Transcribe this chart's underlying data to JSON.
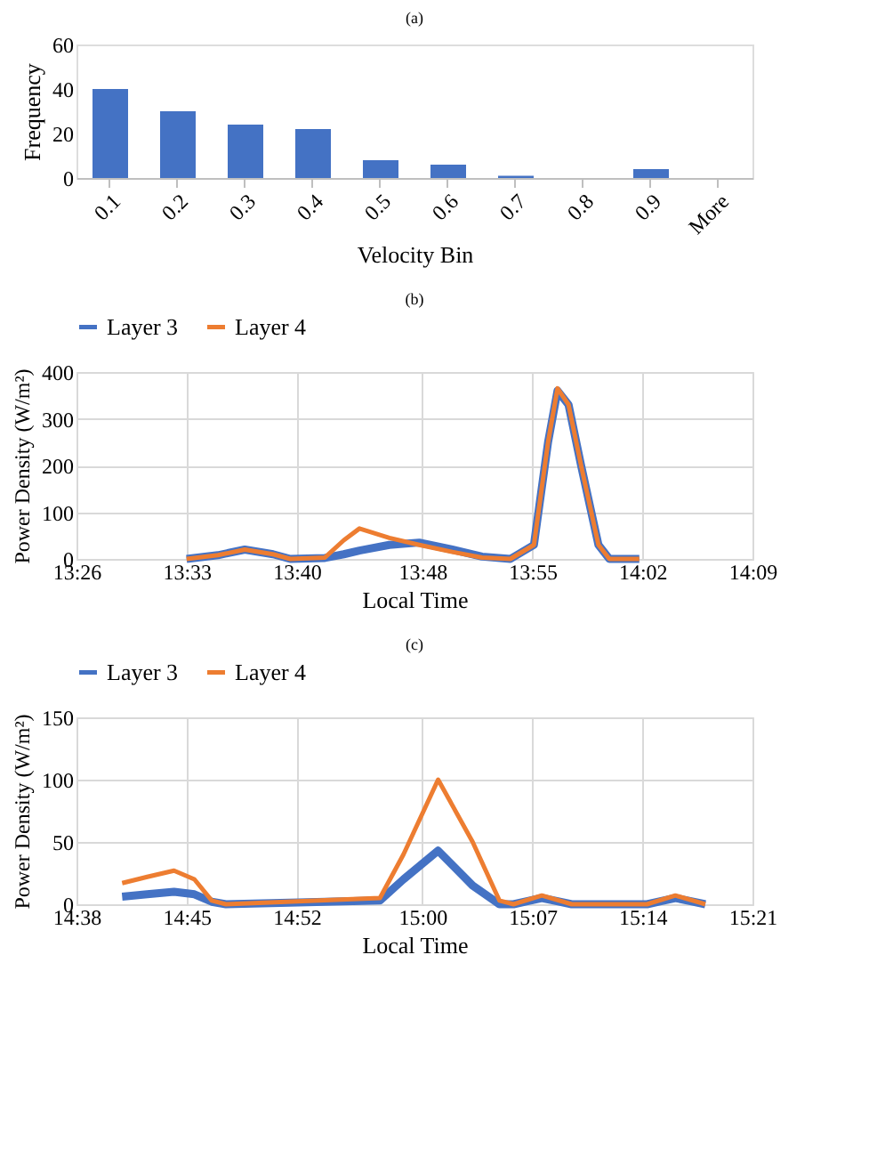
{
  "chart_data": [
    {
      "type": "bar",
      "title": "(a)",
      "xlabel": "Velocity Bin",
      "ylabel": "Frequency",
      "categories": [
        "0.1",
        "0.2",
        "0.3",
        "0.4",
        "0.5",
        "0.6",
        "0.7",
        "0.8",
        "0.9",
        "More"
      ],
      "values": [
        40,
        30,
        24,
        22,
        8,
        6,
        1,
        0,
        4,
        0
      ],
      "color": "#4472c4",
      "ylim": [
        0,
        60
      ],
      "yticks": [
        0,
        20,
        40,
        60
      ],
      "grid": false
    },
    {
      "type": "line",
      "title": "(b)",
      "xlabel": "Local Time",
      "ylabel": "Power Density (W/m²)",
      "xlim": [
        13.4333,
        14.15
      ],
      "xticks": [
        {
          "value": 13.4333,
          "label": "13:26"
        },
        {
          "value": 13.55,
          "label": "13:33"
        },
        {
          "value": 13.6667,
          "label": "13:40"
        },
        {
          "value": 13.8,
          "label": "13:48"
        },
        {
          "value": 13.9167,
          "label": "13:55"
        },
        {
          "value": 14.0333,
          "label": "14:02"
        },
        {
          "value": 14.15,
          "label": "14:09"
        }
      ],
      "ylim": [
        0,
        400
      ],
      "yticks": [
        0,
        100,
        200,
        300,
        400
      ],
      "grid": true,
      "legend": "top",
      "marker": "none",
      "line_style": "solid",
      "x": [
        13.55,
        13.5833,
        13.6117,
        13.6417,
        13.66,
        13.6967,
        13.7167,
        13.7333,
        13.765,
        13.7967,
        13.8317,
        13.8633,
        13.8933,
        13.9183,
        13.9333,
        13.9433,
        13.955,
        13.9683,
        13.9867,
        13.9983,
        14.03
      ],
      "series": [
        {
          "name": "Layer 3",
          "color": "#4472c4",
          "values": [
            0,
            8,
            20,
            10,
            0,
            2,
            10,
            18,
            30,
            35,
            20,
            5,
            0,
            30,
            250,
            360,
            330,
            200,
            30,
            0,
            0
          ]
        },
        {
          "name": "Layer 4",
          "color": "#ed7d31",
          "values": [
            0,
            8,
            20,
            10,
            0,
            3,
            40,
            65,
            45,
            30,
            15,
            3,
            0,
            30,
            250,
            365,
            330,
            200,
            30,
            0,
            0
          ]
        }
      ]
    },
    {
      "type": "line",
      "title": "(c)",
      "xlabel": "Local Time",
      "ylabel": "Power Density (W/m²)",
      "xlim": [
        14.6333,
        15.35
      ],
      "xticks": [
        {
          "value": 14.6333,
          "label": "14:38"
        },
        {
          "value": 14.75,
          "label": "14:45"
        },
        {
          "value": 14.8667,
          "label": "14:52"
        },
        {
          "value": 15.0,
          "label": "15:00"
        },
        {
          "value": 15.1167,
          "label": "15:07"
        },
        {
          "value": 15.2333,
          "label": "15:14"
        },
        {
          "value": 15.35,
          "label": "15:21"
        }
      ],
      "ylim": [
        0,
        150
      ],
      "yticks": [
        0,
        50,
        100,
        150
      ],
      "grid": true,
      "legend": "top",
      "marker": "none",
      "line_style": "solid",
      "x": [
        14.6817,
        14.7083,
        14.7367,
        14.7583,
        14.7767,
        14.7917,
        14.955,
        14.98,
        15.0167,
        15.0533,
        15.0817,
        15.0967,
        15.1267,
        15.1583,
        15.2383,
        15.2683,
        15.3
      ],
      "series": [
        {
          "name": "Layer 3",
          "color": "#4472c4",
          "values": [
            6,
            8,
            10,
            8,
            2,
            0,
            3,
            20,
            43,
            15,
            0,
            0,
            5,
            0,
            0,
            5,
            0
          ]
        },
        {
          "name": "Layer 4",
          "color": "#ed7d31",
          "values": [
            17,
            22,
            27,
            20,
            3,
            0,
            5,
            40,
            100,
            50,
            3,
            0,
            7,
            0,
            0,
            7,
            0
          ]
        }
      ]
    }
  ]
}
